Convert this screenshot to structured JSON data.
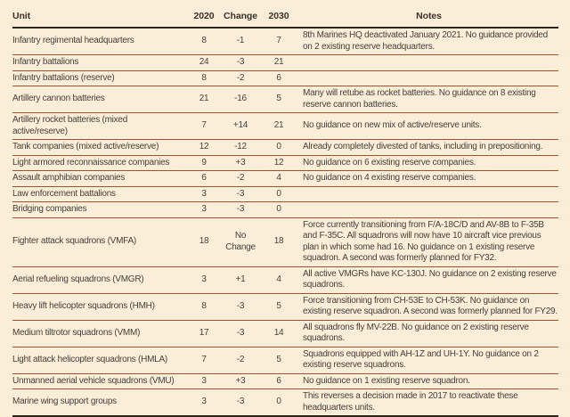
{
  "style": {
    "background_color": "#faeed8",
    "thin_rule_color": "#a0522d",
    "thick_rule_color": "#2e261c",
    "text_color": "#46403a"
  },
  "table": {
    "columns": [
      {
        "key": "unit",
        "label": "Unit"
      },
      {
        "key": "y2020",
        "label": "2020"
      },
      {
        "key": "change",
        "label": "Change"
      },
      {
        "key": "y2030",
        "label": "2030"
      },
      {
        "key": "notes",
        "label": "Notes"
      }
    ],
    "rows": [
      {
        "unit": "Infantry regimental headquarters",
        "y2020": "8",
        "change": "-1",
        "y2030": "7",
        "notes": "8th Marines HQ deactivated January 2021. No guidance provided on 2 existing reserve headquarters."
      },
      {
        "unit": "Infantry battalions",
        "y2020": "24",
        "change": "-3",
        "y2030": "21",
        "notes": ""
      },
      {
        "unit": "Infantry battalions (reserve)",
        "y2020": "8",
        "change": "-2",
        "y2030": "6",
        "notes": ""
      },
      {
        "unit": "Artillery cannon batteries",
        "y2020": "21",
        "change": "-16",
        "y2030": "5",
        "notes": "Many will retube as rocket batteries. No guidance on 8 existing reserve cannon batteries."
      },
      {
        "unit": "Artillery rocket batteries (mixed active/reserve)",
        "y2020": "7",
        "change": "+14",
        "y2030": "21",
        "notes": "No guidance on new mix of active/reserve units."
      },
      {
        "unit": "Tank companies (mixed active/reserve)",
        "y2020": "12",
        "change": "-12",
        "y2030": "0",
        "notes": "Already completely divested of tanks, including in prepositioning."
      },
      {
        "unit": "Light armored reconnaissance companies",
        "y2020": "9",
        "change": "+3",
        "y2030": "12",
        "notes": "No guidance on 6 existing reserve companies."
      },
      {
        "unit": "Assault amphibian companies",
        "y2020": "6",
        "change": "-2",
        "y2030": "4",
        "notes": "No guidance on 4 existing reserve companies."
      },
      {
        "unit": "Law enforcement battalions",
        "y2020": "3",
        "change": "-3",
        "y2030": "0",
        "notes": ""
      },
      {
        "unit": "Bridging companies",
        "y2020": "3",
        "change": "-3",
        "y2030": "0",
        "notes": ""
      },
      {
        "unit": "Fighter attack squadrons (VMFA)",
        "y2020": "18",
        "change": "No Change",
        "y2030": "18",
        "notes": "Force currently transitioning from F/A-18C/D and AV-8B to F-35B and F-35C. All squadrons will now have 10 aircraft vice previous plan in which some had 16. No guidance on 1 existing reserve squadron. A second was formerly planned for FY32."
      },
      {
        "unit": "Aerial refueling squadrons (VMGR)",
        "y2020": "3",
        "change": "+1",
        "y2030": "4",
        "notes": "All active VMGRs have KC-130J. No guidance on 2 existing reserve squadrons."
      },
      {
        "unit": "Heavy lift helicopter squadrons (HMH)",
        "y2020": "8",
        "change": "-3",
        "y2030": "5",
        "notes": "Force transitioning from CH-53E to CH-53K. No guidance on existing reserve squadron. A second was formerly planned for FY29."
      },
      {
        "unit": "Medium tiltrotor squadrons (VMM)",
        "y2020": "17",
        "change": "-3",
        "y2030": "14",
        "notes": "All squadrons fly MV-22B. No guidance on 2 existing reserve squadrons."
      },
      {
        "unit": "Light attack helicopter squadrons (HMLA)",
        "y2020": "7",
        "change": "-2",
        "y2030": "5",
        "notes": "Squadrons equipped with AH-1Z and UH-1Y. No guidance on 2 existing reserve squadrons."
      },
      {
        "unit": "Unmanned aerial vehicle squadrons (VMU)",
        "y2020": "3",
        "change": "+3",
        "y2030": "6",
        "notes": "No guidance on 1 existing reserve squadron."
      },
      {
        "unit": "Marine wing support groups",
        "y2020": "3",
        "change": "-3",
        "y2030": "0",
        "notes": "This reverses a decision made in 2017 to reactivate these headquarters units."
      }
    ]
  }
}
